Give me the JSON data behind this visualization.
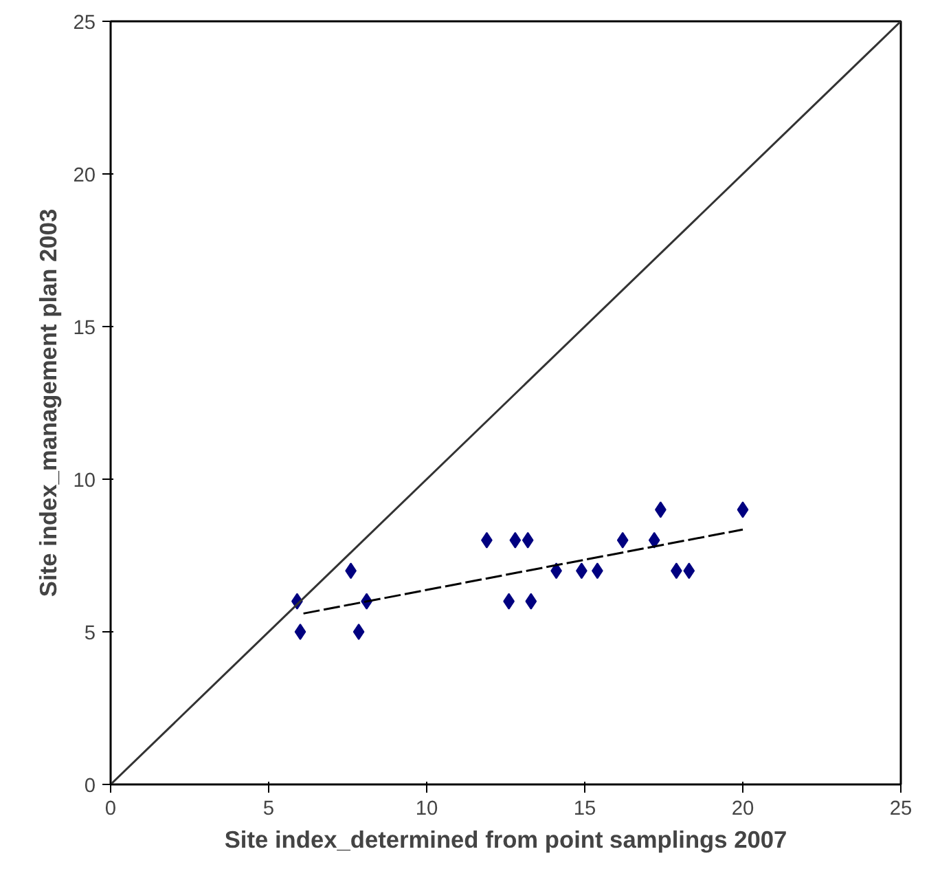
{
  "chart_data": {
    "type": "scatter",
    "xlabel": "Site index_determined from point samplings 2007",
    "ylabel": "Site index_management plan 2003",
    "xlim": [
      0,
      25
    ],
    "ylim": [
      0,
      25
    ],
    "xticks": [
      0,
      5,
      10,
      15,
      20,
      25
    ],
    "yticks": [
      0,
      5,
      10,
      15,
      20,
      25
    ],
    "grid": false,
    "series": [
      {
        "color": "#000080",
        "marker": "diamond",
        "x": [
          5.9,
          6.0,
          7.6,
          8.0,
          8.1,
          7.85,
          11.9,
          12.8,
          13.2,
          12.6,
          13.3,
          14.1,
          14.9,
          15.4,
          16.2,
          17.2,
          17.4,
          17.9,
          18.3,
          20.0
        ],
        "values": [
          6,
          5,
          7,
          null,
          6,
          5,
          8,
          8,
          8,
          6,
          6,
          7,
          7,
          7,
          8,
          8,
          9,
          7,
          7,
          9
        ]
      },
      {
        "type": "line",
        "color": "#000000",
        "line_style": "dashed",
        "marker": "none",
        "x": [
          6.1,
          20.0
        ],
        "values": [
          5.6,
          8.35
        ]
      },
      {
        "type": "line",
        "color": "#333333",
        "line_style": "solid",
        "marker": "none",
        "x": [
          0,
          25
        ],
        "values": [
          0,
          25
        ]
      }
    ]
  }
}
